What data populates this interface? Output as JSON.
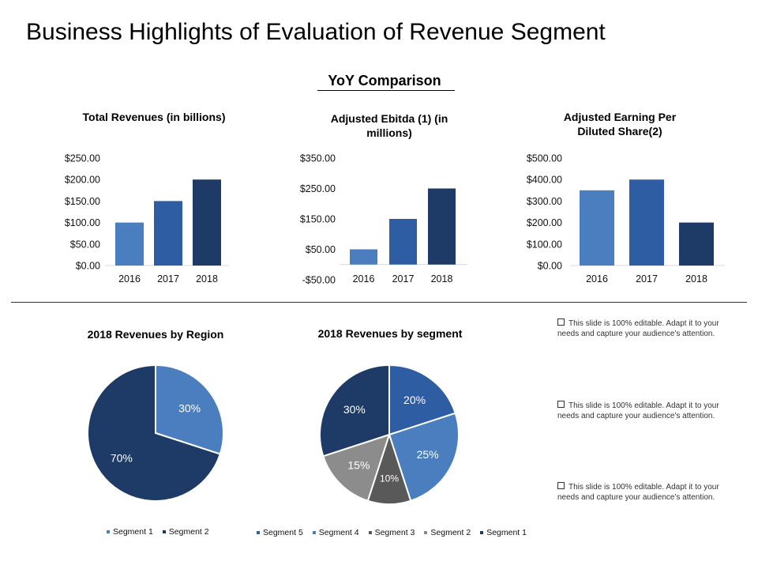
{
  "page": {
    "title": "Business Highlights of Evaluation of Revenue Segment",
    "section_title": "YoY Comparison"
  },
  "notes": [
    "This slide is 100% editable.  Adapt it to your needs and capture your audience's attention.",
    "This slide is 100% editable.  Adapt it to your needs and capture your audience's attention.",
    "This slide is 100% editable.  Adapt it to your needs and capture your audience's attention."
  ],
  "chart_data": [
    {
      "type": "bar",
      "title": "Total Revenues (in billions)",
      "categories": [
        "2016",
        "2017",
        "2018"
      ],
      "values": [
        100,
        150,
        200
      ],
      "ylim": [
        0,
        250
      ],
      "yticks": [
        "$0.00",
        "$50.00",
        "$100.00",
        "$150.00",
        "$200.00",
        "$250.00"
      ],
      "colors": [
        "#4a7ebf",
        "#2e5da3",
        "#1e3a66"
      ]
    },
    {
      "type": "bar",
      "title": "Adjusted Ebitda (1) (in millions)",
      "categories": [
        "2016",
        "2017",
        "2018"
      ],
      "values": [
        50,
        150,
        250
      ],
      "ylim": [
        -50,
        350
      ],
      "yticks": [
        "-$50.00",
        "$50.00",
        "$150.00",
        "$250.00",
        "$350.00"
      ],
      "colors": [
        "#4a7ebf",
        "#2e5da3",
        "#1e3a66"
      ]
    },
    {
      "type": "bar",
      "title": "Adjusted Earning Per Diluted Share(2)",
      "categories": [
        "2016",
        "2017",
        "2018"
      ],
      "values": [
        350,
        400,
        200
      ],
      "ylim": [
        0,
        500
      ],
      "yticks": [
        "$0.00",
        "$100.00",
        "$200.00",
        "$300.00",
        "$400.00",
        "$500.00"
      ],
      "colors": [
        "#4a7ebf",
        "#2e5da3",
        "#1e3a66"
      ]
    },
    {
      "type": "pie",
      "title": "2018 Revenues by Region",
      "slices": [
        {
          "name": "Segment 1",
          "value": 30,
          "label": "30%",
          "color": "#4a7ebf"
        },
        {
          "name": "Segment 2",
          "value": 70,
          "label": "70%",
          "color": "#1e3a66"
        }
      ],
      "legend": [
        "Segment 1",
        "Segment 2"
      ]
    },
    {
      "type": "pie",
      "title": "2018 Revenues by segment",
      "slices": [
        {
          "name": "Segment 5",
          "value": 20,
          "label": "20%",
          "color": "#2e5da3"
        },
        {
          "name": "Segment 4",
          "value": 25,
          "label": "25%",
          "color": "#4a7ebf"
        },
        {
          "name": "Segment 3",
          "value": 10,
          "label": "10%",
          "color": "#595959"
        },
        {
          "name": "Segment 2",
          "value": 15,
          "label": "15%",
          "color": "#8c8c8c"
        },
        {
          "name": "Segment 1",
          "value": 30,
          "label": "30%",
          "color": "#1e3a66"
        }
      ],
      "legend": [
        "Segment 5",
        "Segment 4",
        "Segment 3",
        "Segment 2",
        "Segment 1"
      ]
    }
  ]
}
